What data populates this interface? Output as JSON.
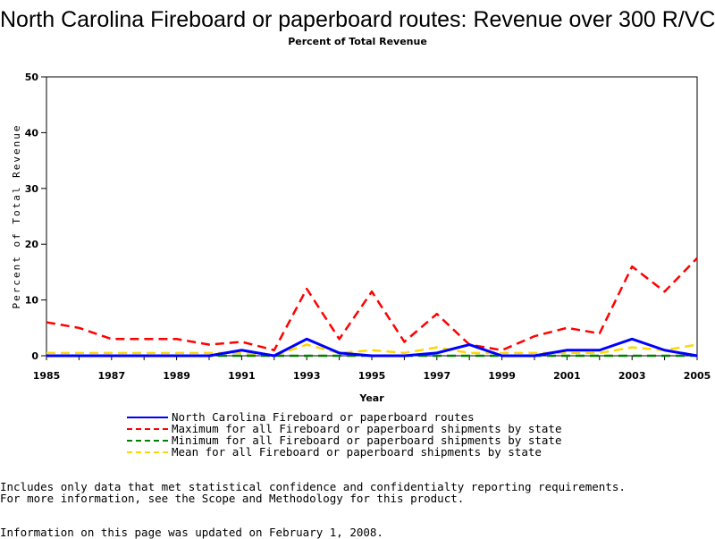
{
  "chart_data": {
    "type": "line",
    "title": "North Carolina Fireboard or paperboard routes: Revenue over 300 R/VC",
    "subtitle": "Percent of Total Revenue",
    "xlabel": "Year",
    "ylabel": "Percent of Total Revenue",
    "xlim": [
      1985,
      2005
    ],
    "ylim": [
      0,
      50
    ],
    "x_ticks": [
      1985,
      1987,
      1989,
      1991,
      1993,
      1995,
      1997,
      1999,
      2001,
      2003,
      2005
    ],
    "y_ticks": [
      0,
      10,
      20,
      30,
      40,
      50
    ],
    "grid": false,
    "legend_position": "bottom",
    "x": [
      1985,
      1986,
      1987,
      1988,
      1989,
      1990,
      1991,
      1992,
      1993,
      1994,
      1995,
      1996,
      1997,
      1998,
      1999,
      2000,
      2001,
      2002,
      2003,
      2004,
      2005
    ],
    "series": [
      {
        "name": "North Carolina Fireboard or paperboard routes",
        "color": "#0000ff",
        "dash": "solid",
        "values": [
          0,
          0,
          0,
          0,
          0,
          0,
          1,
          0,
          3,
          0.5,
          0,
          0,
          0.5,
          2,
          0,
          0,
          1,
          1,
          3,
          1,
          0
        ]
      },
      {
        "name": "Maximum for all Fireboard or paperboard shipments by state",
        "color": "#ff0000",
        "dash": "dashed",
        "values": [
          6,
          5,
          3,
          3,
          3,
          2,
          2.5,
          1,
          12,
          3,
          11.5,
          2.5,
          7.5,
          2,
          1,
          3.5,
          5,
          4,
          16,
          11.5,
          17.5
        ]
      },
      {
        "name": "Minimum for all Fireboard or paperboard shipments by state",
        "color": "#008000",
        "dash": "dashed",
        "values": [
          0,
          0,
          0,
          0,
          0,
          0,
          0,
          0,
          0,
          0,
          0,
          0,
          0,
          0,
          0,
          0,
          0,
          0,
          0,
          0,
          0
        ]
      },
      {
        "name": "Mean for all Fireboard or paperboard shipments by state",
        "color": "#ffd700",
        "dash": "dashed",
        "values": [
          0.5,
          0.5,
          0.5,
          0.5,
          0.5,
          0.5,
          0.5,
          0,
          2,
          0.5,
          1,
          0.5,
          1.5,
          0.5,
          0.5,
          0.5,
          0.5,
          0.5,
          1.5,
          1,
          2
        ]
      }
    ]
  },
  "footnotes": [
    "Includes only data that met statistical confidence and confidentialty reporting requirements.",
    "For more information, see the Scope and Methodology for this product.",
    "Information on this page was updated on February 1, 2008."
  ]
}
